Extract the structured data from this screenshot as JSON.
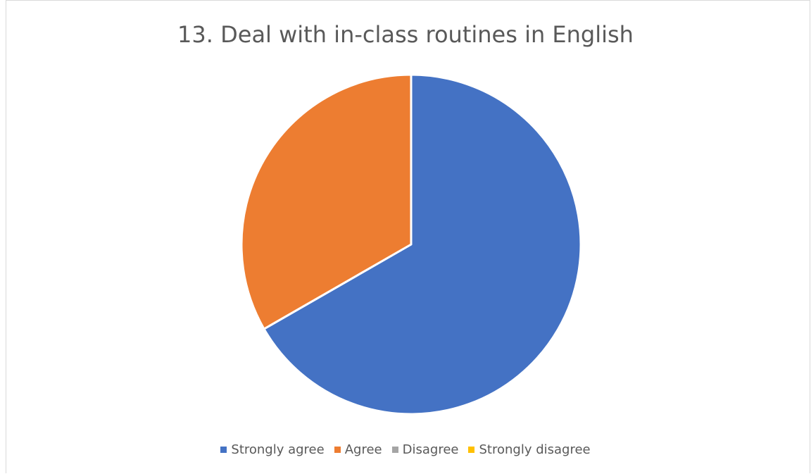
{
  "chart_data": {
    "type": "pie",
    "title": "13. Deal with in-class routines in English",
    "categories": [
      "Strongly agree",
      "Agree",
      "Disagree",
      "Strongly disagree"
    ],
    "values": [
      66.7,
      33.3,
      0,
      0
    ],
    "colors": [
      "#4472C4",
      "#ED7D31",
      "#A5A5A5",
      "#FFC000"
    ],
    "legend_position": "bottom",
    "start_angle_deg": 0,
    "direction": "clockwise"
  }
}
